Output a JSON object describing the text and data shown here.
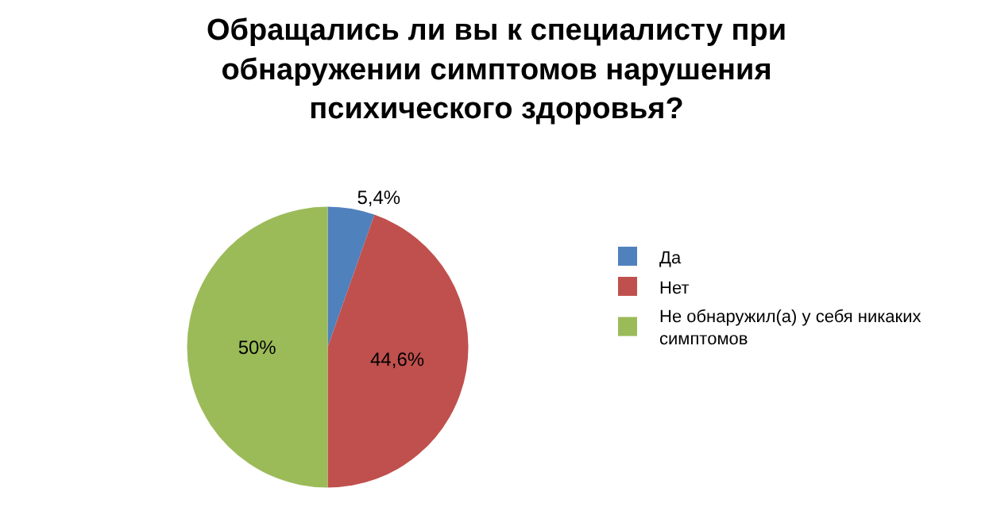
{
  "chart_data": {
    "type": "pie",
    "title": "Обращались ли вы к специалисту при обнаружении симптомов нарушения психического здоровья?",
    "categories": [
      "Да",
      "Нет",
      "Не обнаружил(а) у себя никаких симптомов"
    ],
    "values": [
      5.4,
      44.6,
      50
    ],
    "value_labels": [
      "5,4%",
      "44,6%",
      "50%"
    ],
    "colors": [
      "#4f81bd",
      "#c0504d",
      "#9bbb59"
    ],
    "legend": "right"
  }
}
